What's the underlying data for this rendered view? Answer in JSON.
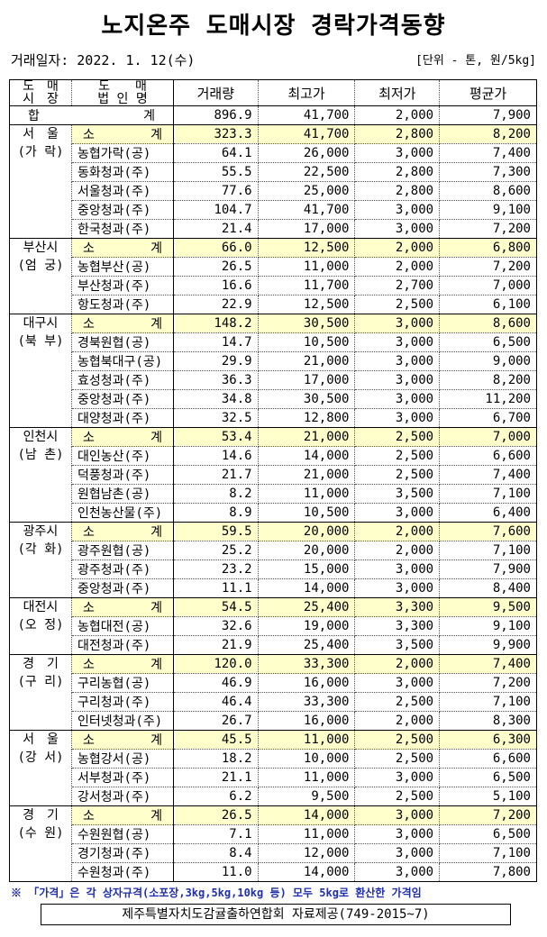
{
  "title": "노지온주 도매시장 경락가격동향",
  "date": "거래일자: 2022. 1. 12(수)",
  "unit": "[단위 - 톤, 원/5kg]",
  "headers": {
    "market": [
      "도　매",
      "시　장"
    ],
    "company": [
      "도　　매",
      "법 인 명"
    ],
    "volume": "거래량",
    "max": "최고가",
    "min": "최저가",
    "avg": "평균가"
  },
  "total": {
    "label_left": "합",
    "label_right": "계",
    "volume": "896.9",
    "max": "41,700",
    "min": "2,000",
    "avg": "7,900"
  },
  "subtotal_label": [
    "소",
    "계"
  ],
  "colors": {
    "subtotal_bg": "#ffffcc",
    "note": "#1f2fae"
  },
  "markets": [
    {
      "name": [
        "서　울",
        "(가 락)"
      ],
      "sub": [
        "323.3",
        "41,700",
        "2,800",
        "8,200"
      ],
      "rows": [
        [
          "농협가락(공)",
          "64.1",
          "26,000",
          "3,000",
          "7,400"
        ],
        [
          "동화청과(주)",
          "55.5",
          "22,500",
          "2,800",
          "7,300"
        ],
        [
          "서울청과(주)",
          "77.6",
          "25,000",
          "2,800",
          "8,600"
        ],
        [
          "중앙청과(주)",
          "104.7",
          "41,700",
          "3,000",
          "9,100"
        ],
        [
          "한국청과(주)",
          "21.4",
          "17,000",
          "3,000",
          "7,200"
        ]
      ]
    },
    {
      "name": [
        "부산시",
        "(엄 궁)"
      ],
      "sub": [
        "66.0",
        "12,500",
        "2,000",
        "6,800"
      ],
      "rows": [
        [
          "농협부산(공)",
          "26.5",
          "11,000",
          "2,000",
          "7,200"
        ],
        [
          "부산청과(주)",
          "16.6",
          "11,700",
          "2,700",
          "7,000"
        ],
        [
          "항도청과(주)",
          "22.9",
          "12,500",
          "2,500",
          "6,100"
        ]
      ]
    },
    {
      "name": [
        "대구시",
        "(북 부)"
      ],
      "sub": [
        "148.2",
        "30,500",
        "3,000",
        "8,600"
      ],
      "rows": [
        [
          "경북원협(공)",
          "14.7",
          "10,500",
          "3,000",
          "6,500"
        ],
        [
          "농협북대구(공)",
          "29.9",
          "21,000",
          "3,000",
          "9,000"
        ],
        [
          "효성청과(주)",
          "36.3",
          "17,000",
          "3,000",
          "8,200"
        ],
        [
          "중앙청과(주)",
          "34.8",
          "30,500",
          "3,000",
          "11,200"
        ],
        [
          "대양청과(주)",
          "32.5",
          "12,800",
          "3,000",
          "6,700"
        ]
      ]
    },
    {
      "name": [
        "인천시",
        "(남 촌)"
      ],
      "sub": [
        "53.4",
        "21,000",
        "2,500",
        "7,000"
      ],
      "rows": [
        [
          "대인농산(주)",
          "14.6",
          "14,000",
          "2,500",
          "6,600"
        ],
        [
          "덕풍청과(주)",
          "21.7",
          "21,000",
          "2,500",
          "7,400"
        ],
        [
          "원협남촌(공)",
          "8.2",
          "11,000",
          "3,500",
          "7,100"
        ],
        [
          "인천농산물(주)",
          "8.9",
          "10,500",
          "3,000",
          "6,400"
        ]
      ]
    },
    {
      "name": [
        "광주시",
        "(각 화)"
      ],
      "sub": [
        "59.5",
        "20,000",
        "2,000",
        "7,600"
      ],
      "rows": [
        [
          "광주원협(공)",
          "25.2",
          "20,000",
          "2,000",
          "7,100"
        ],
        [
          "광주청과(주)",
          "23.2",
          "15,000",
          "3,000",
          "7,900"
        ],
        [
          "중앙청과(주)",
          "11.1",
          "14,000",
          "3,000",
          "8,400"
        ]
      ]
    },
    {
      "name": [
        "대전시",
        "(오 정)"
      ],
      "sub": [
        "54.5",
        "25,400",
        "3,300",
        "9,500"
      ],
      "rows": [
        [
          "농협대전(공)",
          "32.6",
          "19,000",
          "3,300",
          "9,100"
        ],
        [
          "대전청과(주)",
          "21.9",
          "25,400",
          "3,500",
          "9,900"
        ]
      ]
    },
    {
      "name": [
        "경　기",
        "(구 리)"
      ],
      "sub": [
        "120.0",
        "33,300",
        "2,000",
        "7,400"
      ],
      "rows": [
        [
          "구리농협(공)",
          "46.9",
          "16,000",
          "3,000",
          "7,200"
        ],
        [
          "구리청과(주)",
          "46.4",
          "33,300",
          "2,500",
          "7,100"
        ],
        [
          "인터넷청과(주)",
          "26.7",
          "16,000",
          "2,000",
          "8,300"
        ]
      ]
    },
    {
      "name": [
        "서　울",
        "(강 서)"
      ],
      "sub": [
        "45.5",
        "11,000",
        "2,500",
        "6,300"
      ],
      "rows": [
        [
          "농협강서(공)",
          "18.2",
          "10,000",
          "2,500",
          "6,600"
        ],
        [
          "서부청과(주)",
          "21.1",
          "11,000",
          "3,000",
          "6,500"
        ],
        [
          "강서청과(주)",
          "6.2",
          "9,500",
          "2,500",
          "5,100"
        ]
      ]
    },
    {
      "name": [
        "경　기",
        "(수 원)"
      ],
      "sub": [
        "26.5",
        "14,000",
        "3,000",
        "7,200"
      ],
      "rows": [
        [
          "수원원협(공)",
          "7.1",
          "11,000",
          "3,000",
          "6,500"
        ],
        [
          "경기청과(주)",
          "8.4",
          "12,000",
          "3,000",
          "7,100"
        ],
        [
          "수원청과(주)",
          "11.0",
          "14,000",
          "3,000",
          "7,800"
        ]
      ]
    }
  ],
  "note": "※ 「가격」은 각 상자규격(소포장,3kg,5kg,10kg 등) 모두 5kg로 환산한 가격임",
  "source": "제주특별자치도감귤출하연합회 자료제공(749-2015~7)"
}
